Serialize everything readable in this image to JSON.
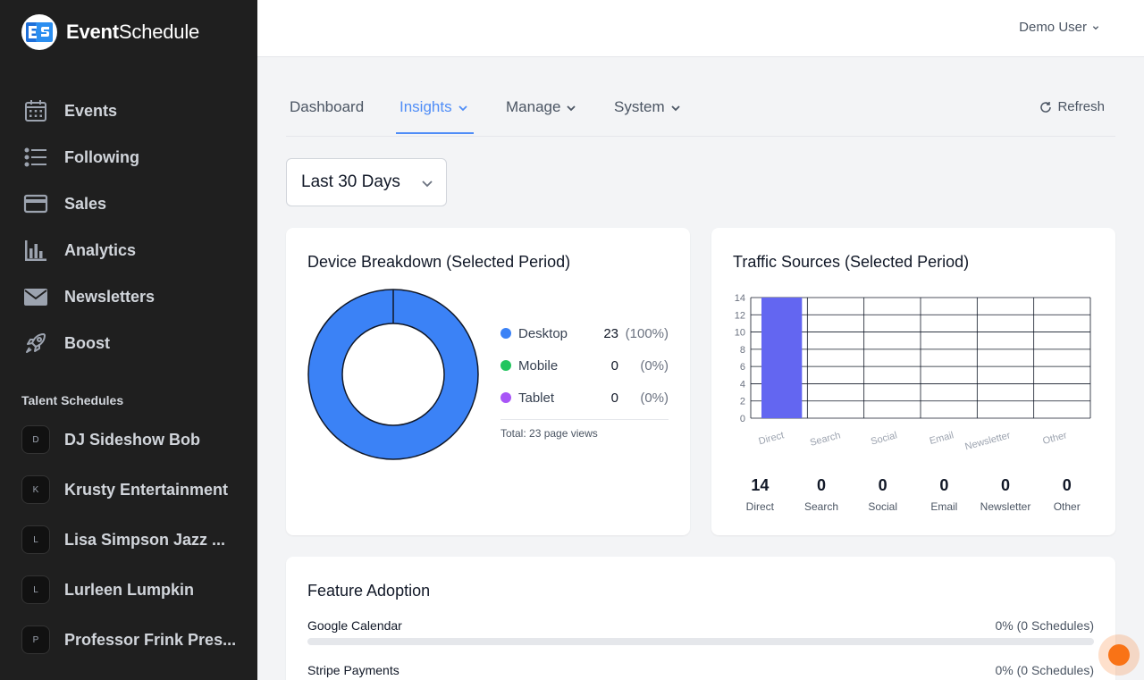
{
  "app": {
    "name_bold": "Event",
    "name_regular": "Schedule",
    "logo_text": "ES"
  },
  "sidebar": {
    "items": [
      {
        "label": "Events",
        "icon": "calendar-icon"
      },
      {
        "label": "Following",
        "icon": "list-icon"
      },
      {
        "label": "Sales",
        "icon": "credit-card-icon"
      },
      {
        "label": "Analytics",
        "icon": "chart-bar-icon"
      },
      {
        "label": "Newsletters",
        "icon": "envelope-icon"
      },
      {
        "label": "Boost",
        "icon": "rocket-icon"
      }
    ],
    "section_title": "Talent Schedules",
    "talents": [
      {
        "initial": "D",
        "name": "DJ Sideshow Bob"
      },
      {
        "initial": "K",
        "name": "Krusty Entertainment"
      },
      {
        "initial": "L",
        "name": "Lisa Simpson Jazz ..."
      },
      {
        "initial": "L",
        "name": "Lurleen Lumpkin"
      },
      {
        "initial": "P",
        "name": "Professor Frink Pres..."
      }
    ]
  },
  "header": {
    "user": "Demo User"
  },
  "tabs": [
    {
      "label": "Dashboard",
      "active": false
    },
    {
      "label": "Insights",
      "active": true
    },
    {
      "label": "Manage",
      "active": false
    },
    {
      "label": "System",
      "active": false
    }
  ],
  "refresh_label": "Refresh",
  "period": {
    "selected": "Last 30 Days"
  },
  "device": {
    "title": "Device Breakdown (Selected Period)",
    "items": [
      {
        "label": "Desktop",
        "count": "23",
        "pct": "(100%)",
        "color": "#3b82f6"
      },
      {
        "label": "Mobile",
        "count": "0",
        "pct": "(0%)",
        "color": "#22c55e"
      },
      {
        "label": "Tablet",
        "count": "0",
        "pct": "(0%)",
        "color": "#a855f7"
      }
    ],
    "total": "Total: 23 page views"
  },
  "traffic": {
    "title": "Traffic Sources (Selected Period)",
    "stats": [
      {
        "value": "14",
        "label": "Direct"
      },
      {
        "value": "0",
        "label": "Search"
      },
      {
        "value": "0",
        "label": "Social"
      },
      {
        "value": "0",
        "label": "Email"
      },
      {
        "value": "0",
        "label": "Newsletter"
      },
      {
        "value": "0",
        "label": "Other"
      }
    ]
  },
  "chart_data": [
    {
      "type": "pie",
      "title": "Device Breakdown (Selected Period)",
      "categories": [
        "Desktop",
        "Mobile",
        "Tablet"
      ],
      "values": [
        23,
        0,
        0
      ],
      "colors": [
        "#3b82f6",
        "#22c55e",
        "#a855f7"
      ],
      "legend": "right"
    },
    {
      "type": "bar",
      "title": "Traffic Sources (Selected Period)",
      "categories": [
        "Direct",
        "Search",
        "Social",
        "Email",
        "Newsletter",
        "Other"
      ],
      "values": [
        14,
        0,
        0,
        0,
        0,
        0
      ],
      "ylim": [
        0,
        14
      ],
      "yticks": [
        0,
        2,
        4,
        6,
        8,
        10,
        12,
        14
      ],
      "grid": true,
      "color": "#6366f1"
    }
  ],
  "features": {
    "title": "Feature Adoption",
    "items": [
      {
        "name": "Google Calendar",
        "value": "0% (0 Schedules)",
        "fraction": 0
      },
      {
        "name": "Stripe Payments",
        "value": "0% (0 Schedules)",
        "fraction": 0
      }
    ]
  }
}
